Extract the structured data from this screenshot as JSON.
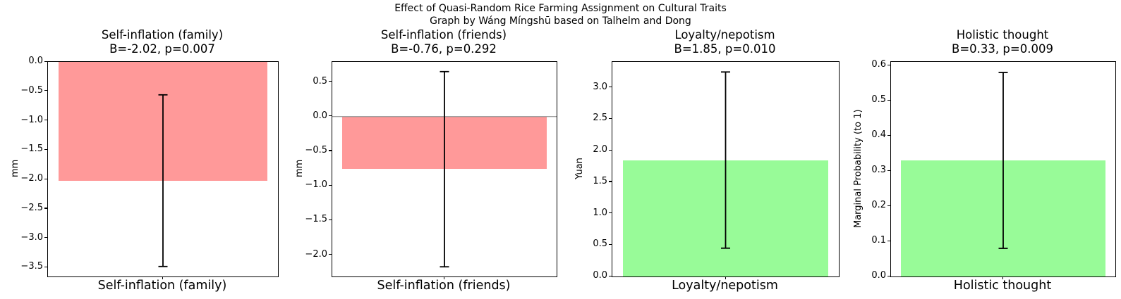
{
  "header": {
    "title": "Effect of Quasi-Random Rice Farming Assignment on Cultural Traits",
    "subtitle": "Graph by Wáng Míngshū based on Talhelm and Dong"
  },
  "colors": {
    "negative_bar": "#ff9999",
    "positive_bar": "#98fb98",
    "error_bar": "#000000",
    "zero_line": "#808080"
  },
  "chart_data": [
    {
      "type": "bar",
      "title": "Self-inflation (family)",
      "stats": "B=-2.02, p=0.007",
      "B": -2.02,
      "p": 0.007,
      "categories": [
        "Self-inflation (family)"
      ],
      "values": [
        -2.02
      ],
      "error_low": [
        -3.48
      ],
      "error_high": [
        -0.56
      ],
      "xlabel": "",
      "ylabel": "mm",
      "ylim": [
        -3.65,
        0
      ],
      "yticks": [
        0,
        -0.5,
        -1,
        -1.5,
        -2,
        -2.5,
        -3,
        -3.5
      ],
      "bar_color": "#ff9999",
      "grid": false,
      "legend": null
    },
    {
      "type": "bar",
      "title": "Self-inflation (friends)",
      "stats": "B=-0.76, p=0.292",
      "B": -0.76,
      "p": 0.292,
      "categories": [
        "Self-inflation (friends)"
      ],
      "values": [
        -0.76
      ],
      "error_low": [
        -2.17
      ],
      "error_high": [
        0.65
      ],
      "xlabel": "",
      "ylabel": "mm",
      "ylim": [
        -2.31,
        0.79
      ],
      "yticks": [
        0.5,
        0,
        -0.5,
        -1,
        -1.5,
        -2
      ],
      "bar_color": "#ff9999",
      "grid": false,
      "legend": null
    },
    {
      "type": "bar",
      "title": "Loyalty/nepotism",
      "stats": "B=1.85, p=0.010",
      "B": 1.85,
      "p": 0.01,
      "categories": [
        "Loyalty/nepotism"
      ],
      "values": [
        1.85
      ],
      "error_low": [
        0.45
      ],
      "error_high": [
        3.25
      ],
      "xlabel": "",
      "ylabel": "Yuan",
      "ylim": [
        0,
        3.41
      ],
      "yticks": [
        0,
        0.5,
        1,
        1.5,
        2,
        2.5,
        3
      ],
      "bar_color": "#98fb98",
      "grid": false,
      "legend": null
    },
    {
      "type": "bar",
      "title": "Holistic thought",
      "stats": "B=0.33, p=0.009",
      "B": 0.33,
      "p": 0.009,
      "categories": [
        "Holistic thought"
      ],
      "values": [
        0.33
      ],
      "error_low": [
        0.08
      ],
      "error_high": [
        0.58
      ],
      "xlabel": "",
      "ylabel": "Marginal Probability (to 1)",
      "ylim": [
        0,
        0.61
      ],
      "yticks": [
        0,
        0.1,
        0.2,
        0.3,
        0.4,
        0.5,
        0.6
      ],
      "bar_color": "#98fb98",
      "grid": false,
      "legend": null
    }
  ]
}
